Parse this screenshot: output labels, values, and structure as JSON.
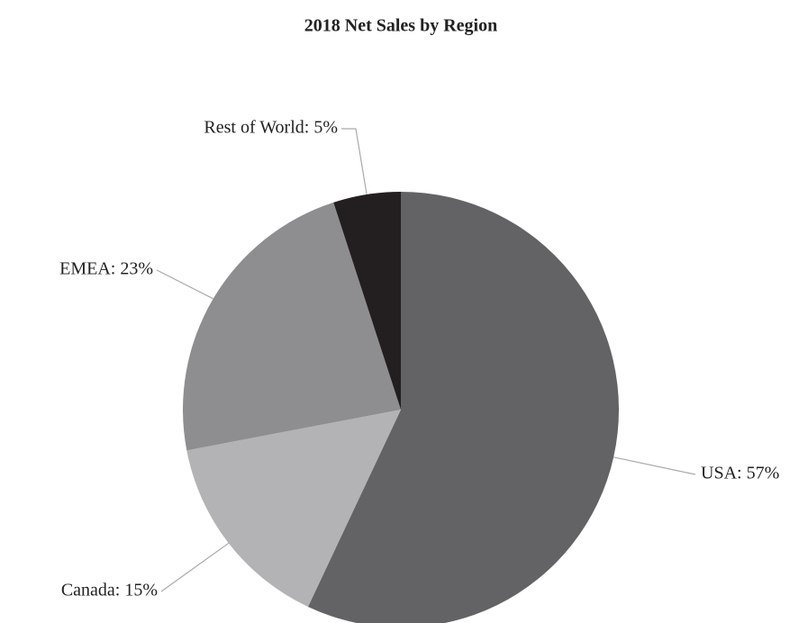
{
  "chart_data": {
    "type": "pie",
    "title": "2018 Net Sales by Region",
    "values": [
      57,
      15,
      23,
      5
    ],
    "value_labels": [
      "USA: 57%",
      "Canada: 15%",
      "EMEA: 23%",
      "Rest of World: 5%"
    ],
    "colors": [
      "#636366",
      "#b3b3b5",
      "#8e8e90",
      "#231f20"
    ]
  }
}
